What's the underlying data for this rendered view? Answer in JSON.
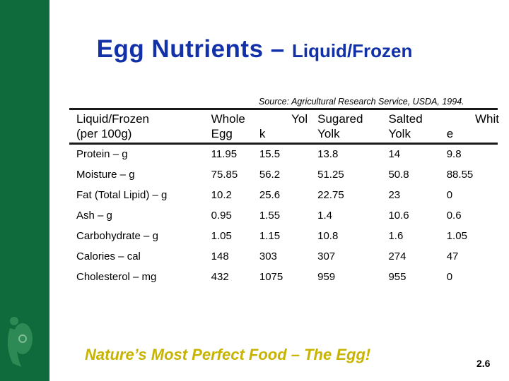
{
  "title": {
    "main": "Egg Nutrients",
    "separator": " – ",
    "sub": "Liquid/Frozen"
  },
  "source": "Source: Agricultural Research Service, USDA, 1994.",
  "table": {
    "headers": [
      [
        "Liquid/Frozen",
        "(per 100g)"
      ],
      [
        "Whole",
        "Egg"
      ],
      [
        "Yol",
        "k"
      ],
      [
        "Sugared",
        "Yolk"
      ],
      [
        "Salted",
        "Yolk"
      ],
      [
        "Whit",
        "e"
      ]
    ],
    "rows": [
      [
        "Protein – g",
        "11.95",
        "15.5",
        "13.8",
        "14",
        "9.8"
      ],
      [
        "Moisture – g",
        "75.85",
        "56.2",
        "51.25",
        "50.8",
        "88.55"
      ],
      [
        "Fat (Total Lipid) – g",
        "10.2",
        "25.6",
        "22.75",
        "23",
        "0"
      ],
      [
        "Ash – g",
        "0.95",
        "1.55",
        "1.4",
        "10.6",
        "0.6"
      ],
      [
        "Carbohydrate – g",
        "1.05",
        "1.15",
        "10.8",
        "1.6",
        "1.05"
      ],
      [
        "Calories – cal",
        "148",
        "303",
        "307",
        "274",
        "47"
      ],
      [
        "Cholesterol – mg",
        "432",
        "1075",
        "959",
        "955",
        "0"
      ]
    ]
  },
  "tagline": "Nature’s Most Perfect Food – The Egg!",
  "page_number": "2.6",
  "colors": {
    "sidebar": "#0f6b3b",
    "title": "#1230a8",
    "tagline": "#c8b400"
  }
}
